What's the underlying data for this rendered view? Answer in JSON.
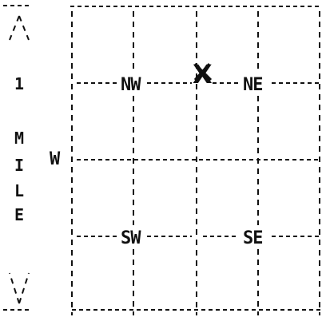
{
  "map": {
    "scale_label": [
      "1",
      "M",
      "I",
      "L",
      "E"
    ],
    "west_label": "W",
    "quadrants": {
      "nw": "NW",
      "ne": "NE",
      "sw": "SW",
      "se": "SE"
    },
    "player_marker": "X"
  },
  "icons": {
    "scale_top_arrow": "up-arrow-icon",
    "scale_bottom_arrow": "down-arrow-icon",
    "player": "player-x-icon"
  }
}
